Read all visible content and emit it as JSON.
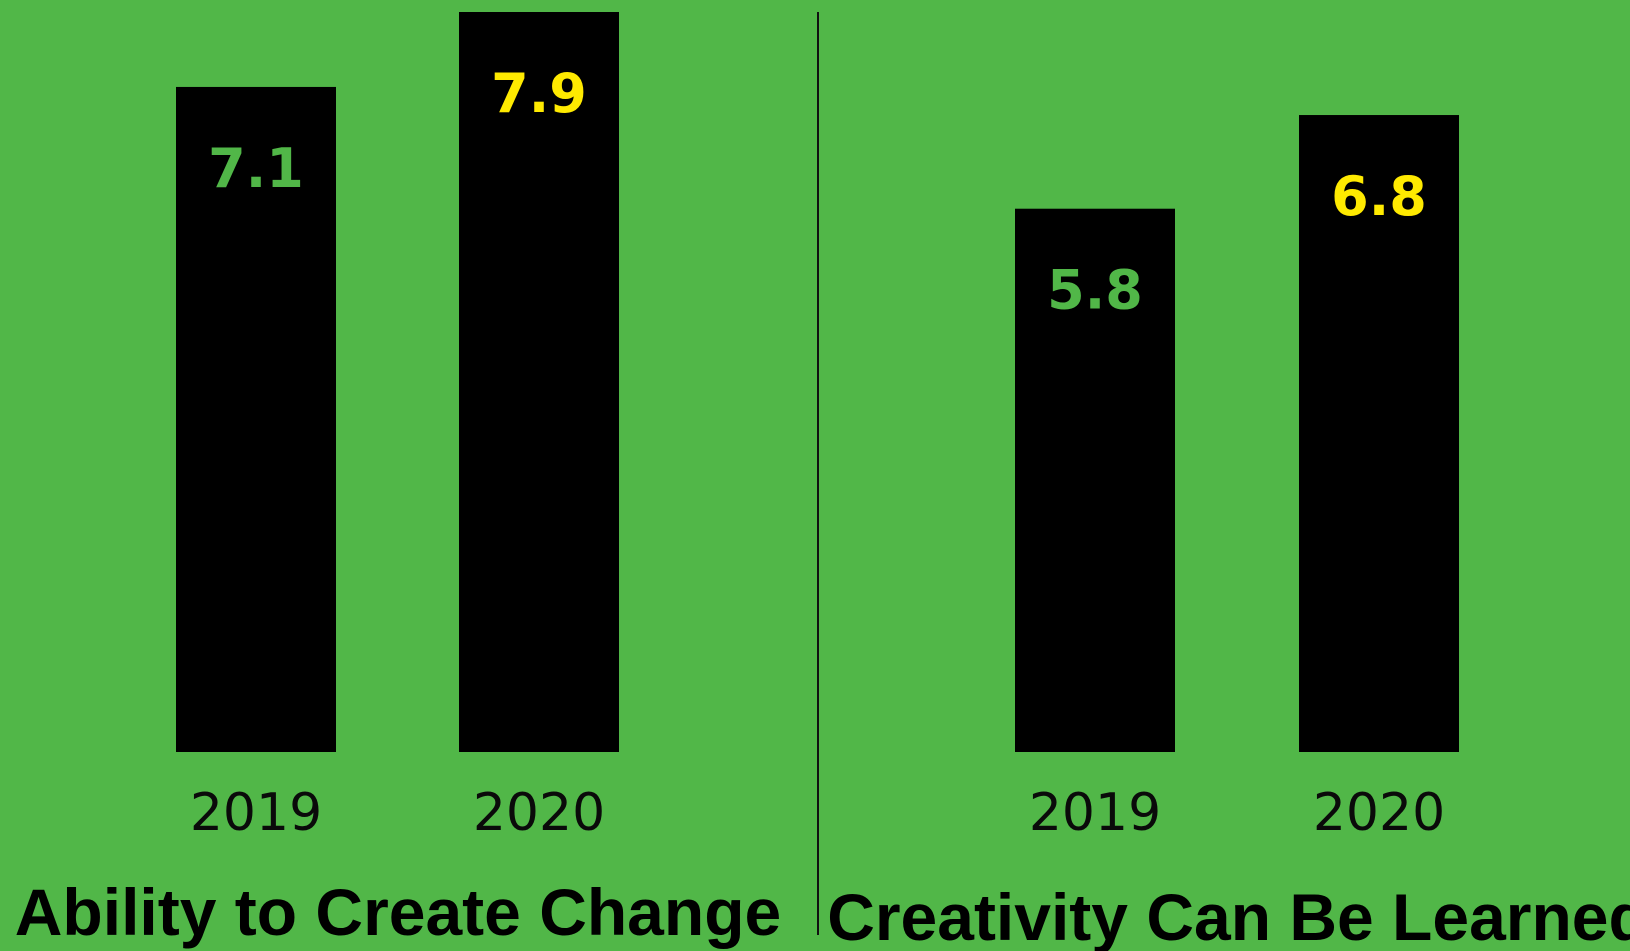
{
  "chart_data": [
    {
      "type": "bar",
      "title": "Ability to Create Change",
      "categories": [
        "2019",
        "2020"
      ],
      "values": [
        7.1,
        7.9
      ],
      "value_labels": [
        "7.1",
        "7.9"
      ],
      "ylim": [
        0,
        7.9
      ],
      "grid": false,
      "colors": {
        "bar": "#000000",
        "label_2019": "#51b748",
        "label_2020": "#ffea00"
      }
    },
    {
      "type": "bar",
      "title": "Creativity Can Be Learned",
      "categories": [
        "2019",
        "2020"
      ],
      "values": [
        5.8,
        6.8
      ],
      "value_labels": [
        "5.8",
        "6.8"
      ],
      "ylim": [
        0,
        7.9
      ],
      "grid": false,
      "colors": {
        "bar": "#000000",
        "label_2019": "#51b748",
        "label_2020": "#ffea00"
      }
    }
  ],
  "colors": {
    "background": "#51b748",
    "divider": "#111111"
  }
}
